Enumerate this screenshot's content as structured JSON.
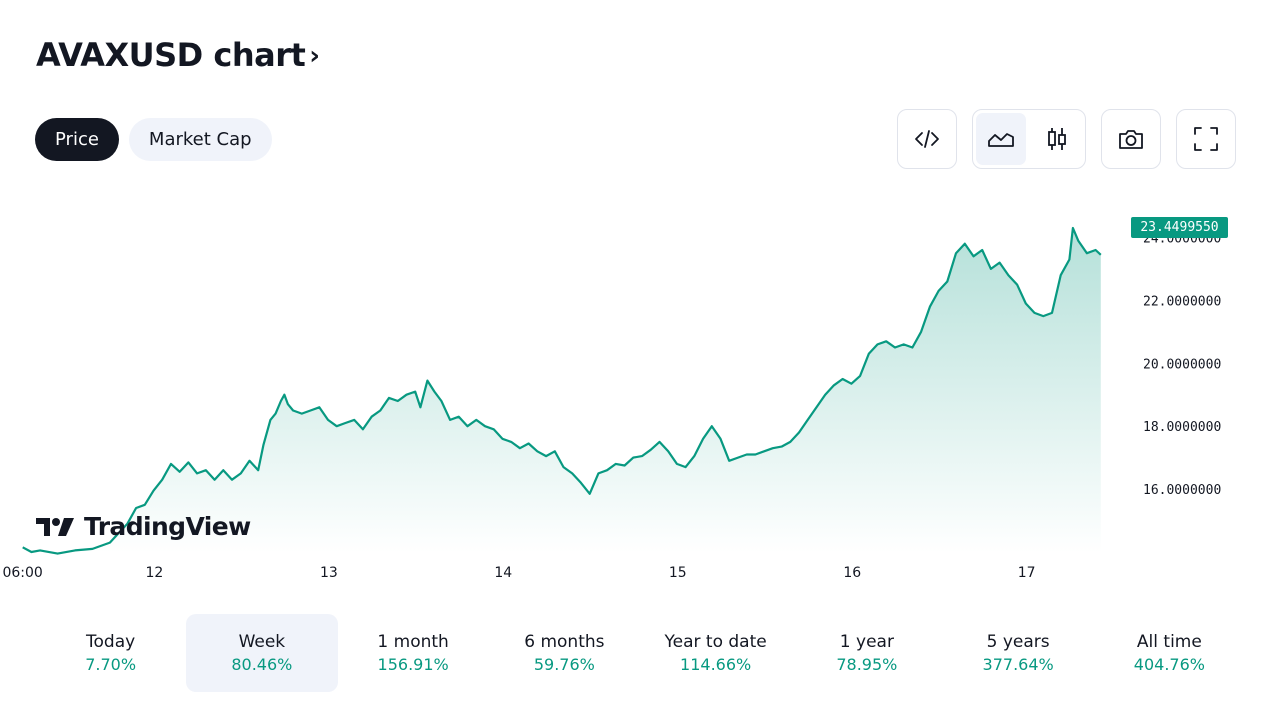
{
  "header": {
    "title": "AVAXUSD chart",
    "chevron": "›"
  },
  "tabs": [
    {
      "label": "Price",
      "active": true
    },
    {
      "label": "Market Cap",
      "active": false
    }
  ],
  "toolbar": {
    "embed_icon": "code-icon",
    "area_icon": "area-chart-icon",
    "candles_icon": "candlestick-icon",
    "snapshot_icon": "camera-icon",
    "fullscreen_icon": "fullscreen-icon"
  },
  "brand": {
    "name": "TradingView"
  },
  "colors": {
    "line": "#089981",
    "accent": "#131722",
    "tab_bg": "#f0f3fa"
  },
  "chart_data": {
    "type": "area",
    "symbol": "AVAXUSD",
    "last_price_label": "23.4499550",
    "last_price": 23.449955,
    "ylim": [
      14.0,
      25.0
    ],
    "y_ticks": [
      {
        "value": 24,
        "label": "24.0000000"
      },
      {
        "value": 22,
        "label": "22.0000000"
      },
      {
        "value": 20,
        "label": "20.0000000"
      },
      {
        "value": 18,
        "label": "18.0000000"
      },
      {
        "value": 16,
        "label": "16.0000000"
      }
    ],
    "x_ticks": [
      {
        "t": 0,
        "label": "06:00"
      },
      {
        "t": 0.755,
        "label": "12"
      },
      {
        "t": 1.755,
        "label": "13"
      },
      {
        "t": 2.755,
        "label": "14"
      },
      {
        "t": 3.755,
        "label": "15"
      },
      {
        "t": 4.755,
        "label": "16"
      },
      {
        "t": 5.755,
        "label": "17"
      }
    ],
    "xlim": [
      -0.13,
      6.33
    ],
    "series": [
      {
        "values": [
          [
            0.0,
            14.15
          ],
          [
            0.05,
            14.0
          ],
          [
            0.1,
            14.05
          ],
          [
            0.2,
            13.95
          ],
          [
            0.3,
            14.05
          ],
          [
            0.4,
            14.1
          ],
          [
            0.5,
            14.3
          ],
          [
            0.55,
            14.6
          ],
          [
            0.6,
            14.9
          ],
          [
            0.65,
            15.4
          ],
          [
            0.7,
            15.5
          ],
          [
            0.75,
            15.95
          ],
          [
            0.8,
            16.3
          ],
          [
            0.85,
            16.8
          ],
          [
            0.9,
            16.55
          ],
          [
            0.95,
            16.85
          ],
          [
            1.0,
            16.5
          ],
          [
            1.05,
            16.6
          ],
          [
            1.1,
            16.3
          ],
          [
            1.15,
            16.6
          ],
          [
            1.2,
            16.3
          ],
          [
            1.25,
            16.5
          ],
          [
            1.3,
            16.9
          ],
          [
            1.35,
            16.6
          ],
          [
            1.38,
            17.4
          ],
          [
            1.42,
            18.2
          ],
          [
            1.45,
            18.4
          ],
          [
            1.48,
            18.8
          ],
          [
            1.5,
            19.0
          ],
          [
            1.52,
            18.7
          ],
          [
            1.55,
            18.5
          ],
          [
            1.6,
            18.4
          ],
          [
            1.65,
            18.5
          ],
          [
            1.7,
            18.6
          ],
          [
            1.75,
            18.2
          ],
          [
            1.8,
            18.0
          ],
          [
            1.85,
            18.1
          ],
          [
            1.9,
            18.2
          ],
          [
            1.95,
            17.9
          ],
          [
            2.0,
            18.3
          ],
          [
            2.05,
            18.5
          ],
          [
            2.1,
            18.9
          ],
          [
            2.15,
            18.8
          ],
          [
            2.2,
            19.0
          ],
          [
            2.25,
            19.1
          ],
          [
            2.28,
            18.6
          ],
          [
            2.32,
            19.45
          ],
          [
            2.36,
            19.1
          ],
          [
            2.4,
            18.8
          ],
          [
            2.45,
            18.2
          ],
          [
            2.5,
            18.3
          ],
          [
            2.55,
            18.0
          ],
          [
            2.6,
            18.2
          ],
          [
            2.65,
            18.0
          ],
          [
            2.7,
            17.9
          ],
          [
            2.75,
            17.6
          ],
          [
            2.8,
            17.5
          ],
          [
            2.85,
            17.3
          ],
          [
            2.9,
            17.45
          ],
          [
            2.95,
            17.2
          ],
          [
            3.0,
            17.05
          ],
          [
            3.05,
            17.2
          ],
          [
            3.1,
            16.7
          ],
          [
            3.15,
            16.5
          ],
          [
            3.2,
            16.2
          ],
          [
            3.25,
            15.85
          ],
          [
            3.3,
            16.5
          ],
          [
            3.35,
            16.6
          ],
          [
            3.4,
            16.8
          ],
          [
            3.45,
            16.75
          ],
          [
            3.5,
            17.0
          ],
          [
            3.55,
            17.05
          ],
          [
            3.6,
            17.25
          ],
          [
            3.65,
            17.5
          ],
          [
            3.7,
            17.2
          ],
          [
            3.75,
            16.8
          ],
          [
            3.8,
            16.7
          ],
          [
            3.85,
            17.05
          ],
          [
            3.9,
            17.6
          ],
          [
            3.95,
            18.0
          ],
          [
            4.0,
            17.6
          ],
          [
            4.05,
            16.9
          ],
          [
            4.1,
            17.0
          ],
          [
            4.15,
            17.1
          ],
          [
            4.2,
            17.1
          ],
          [
            4.25,
            17.2
          ],
          [
            4.3,
            17.3
          ],
          [
            4.35,
            17.35
          ],
          [
            4.4,
            17.5
          ],
          [
            4.45,
            17.8
          ],
          [
            4.5,
            18.2
          ],
          [
            4.55,
            18.6
          ],
          [
            4.6,
            19.0
          ],
          [
            4.65,
            19.3
          ],
          [
            4.7,
            19.5
          ],
          [
            4.75,
            19.35
          ],
          [
            4.8,
            19.6
          ],
          [
            4.85,
            20.3
          ],
          [
            4.9,
            20.6
          ],
          [
            4.95,
            20.7
          ],
          [
            5.0,
            20.5
          ],
          [
            5.05,
            20.6
          ],
          [
            5.1,
            20.5
          ],
          [
            5.15,
            21.0
          ],
          [
            5.2,
            21.8
          ],
          [
            5.25,
            22.3
          ],
          [
            5.3,
            22.6
          ],
          [
            5.35,
            23.5
          ],
          [
            5.4,
            23.8
          ],
          [
            5.45,
            23.4
          ],
          [
            5.5,
            23.6
          ],
          [
            5.55,
            23.0
          ],
          [
            5.6,
            23.2
          ],
          [
            5.65,
            22.8
          ],
          [
            5.7,
            22.5
          ],
          [
            5.75,
            21.9
          ],
          [
            5.8,
            21.6
          ],
          [
            5.85,
            21.5
          ],
          [
            5.9,
            21.6
          ],
          [
            5.95,
            22.8
          ],
          [
            6.0,
            23.3
          ],
          [
            6.02,
            24.3
          ],
          [
            6.05,
            23.9
          ],
          [
            6.1,
            23.5
          ],
          [
            6.15,
            23.6
          ],
          [
            6.18,
            23.45
          ]
        ]
      }
    ]
  },
  "periods": [
    {
      "label": "Today",
      "value": "7.70%",
      "active": false
    },
    {
      "label": "Week",
      "value": "80.46%",
      "active": true
    },
    {
      "label": "1 month",
      "value": "156.91%",
      "active": false
    },
    {
      "label": "6 months",
      "value": "59.76%",
      "active": false
    },
    {
      "label": "Year to date",
      "value": "114.66%",
      "active": false
    },
    {
      "label": "1 year",
      "value": "78.95%",
      "active": false
    },
    {
      "label": "5 years",
      "value": "377.64%",
      "active": false
    },
    {
      "label": "All time",
      "value": "404.76%",
      "active": false
    }
  ]
}
